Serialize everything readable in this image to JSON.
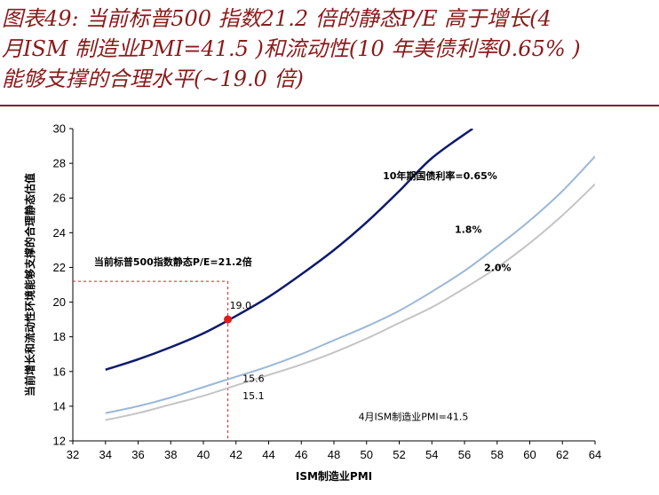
{
  "title_lines": [
    "图表49:  当前标普500 指数21.2 倍的静态P/E 高于增长(4",
    "月ISM 制造业PMI=41.5 )和流动性(10 年美债利率0.65% )",
    "能够支撑的合理水平(~19.0 倍)"
  ],
  "colors": {
    "title": "#8b1a1a",
    "series_065": "#0d1a6e",
    "series_18": "#9ab8d8",
    "series_20": "#c4c4c4",
    "marker": "#e31a1c",
    "guide": "#e31a1c"
  },
  "chart_data": {
    "type": "line",
    "xlabel": "ISM制造业PMI",
    "ylabel": "当前增长和流动性环境能够支撑的合理静态估值",
    "xlim": [
      32,
      64
    ],
    "ylim": [
      12,
      30
    ],
    "xticks": [
      32,
      34,
      36,
      38,
      40,
      42,
      44,
      46,
      48,
      50,
      52,
      54,
      56,
      58,
      60,
      62,
      64
    ],
    "yticks": [
      12,
      14,
      16,
      18,
      20,
      22,
      24,
      26,
      28,
      30
    ],
    "grid": false,
    "series": [
      {
        "name": "10年期国债利率=0.65%",
        "color": "#0d1a6e",
        "x": [
          34,
          36,
          38,
          40,
          42,
          44,
          46,
          48,
          50,
          52,
          54,
          56.5
        ],
        "y": [
          16.1,
          16.7,
          17.4,
          18.2,
          19.2,
          20.3,
          21.6,
          23.0,
          24.6,
          26.4,
          28.3,
          30.0
        ]
      },
      {
        "name": "1.8%",
        "color": "#9ab8d8",
        "x": [
          34,
          36,
          38,
          40,
          42,
          44,
          46,
          48,
          50,
          52,
          54,
          56,
          58,
          60,
          62,
          64
        ],
        "y": [
          13.6,
          14.0,
          14.5,
          15.1,
          15.7,
          16.3,
          17.0,
          17.8,
          18.6,
          19.5,
          20.6,
          21.8,
          23.2,
          24.7,
          26.4,
          28.4
        ]
      },
      {
        "name": "2.0%",
        "color": "#c4c4c4",
        "x": [
          34,
          36,
          38,
          40,
          42,
          44,
          46,
          48,
          50,
          52,
          54,
          56,
          58,
          60,
          62,
          64
        ],
        "y": [
          13.2,
          13.6,
          14.1,
          14.6,
          15.2,
          15.8,
          16.4,
          17.1,
          17.9,
          18.8,
          19.7,
          20.8,
          22.0,
          23.4,
          25.0,
          26.8
        ]
      }
    ],
    "point": {
      "x": 41.5,
      "y": 19.0,
      "label": "19.0"
    },
    "current_pe": {
      "y": 21.2,
      "label": "当前标普500指数静态P/E=21.2倍"
    },
    "value_labels": [
      {
        "text": "15.6",
        "x": 42.4,
        "y": 15.6
      },
      {
        "text": "15.1",
        "x": 42.4,
        "y": 14.6
      }
    ],
    "series_labels": [
      {
        "text": "10年期国债利率=0.65%",
        "x": 51.0,
        "y": 27.3
      },
      {
        "text": "1.8%",
        "x": 55.4,
        "y": 24.2
      },
      {
        "text": "2.0%",
        "x": 57.2,
        "y": 22.0
      }
    ],
    "pmi_annotation": {
      "text": "4月ISM制造业PMI=41.5",
      "x": 49.5,
      "y": 13.4
    }
  }
}
